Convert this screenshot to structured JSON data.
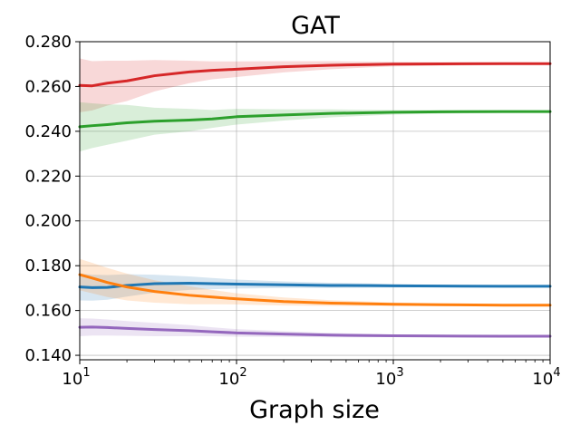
{
  "chart_data": {
    "type": "line",
    "title": "GAT",
    "xlabel": "Graph size",
    "ylabel": "",
    "xscale": "log",
    "xlim": [
      10,
      10000
    ],
    "ylim": [
      0.138,
      0.28
    ],
    "grid": true,
    "x_ticks": [
      {
        "value": 10,
        "base": "10",
        "exp": "1"
      },
      {
        "value": 100,
        "base": "10",
        "exp": "2"
      },
      {
        "value": 1000,
        "base": "10",
        "exp": "3"
      },
      {
        "value": 10000,
        "base": "10",
        "exp": "4"
      }
    ],
    "y_ticks": [
      "0.140",
      "0.160",
      "0.180",
      "0.200",
      "0.220",
      "0.240",
      "0.260",
      "0.280"
    ],
    "series": [
      {
        "color": "#d62728",
        "x": [
          10,
          12,
          15,
          20,
          30,
          50,
          70,
          100,
          200,
          400,
          700,
          1000,
          2000,
          5000,
          10000
        ],
        "y": [
          0.2605,
          0.2603,
          0.2615,
          0.2625,
          0.2648,
          0.2665,
          0.2672,
          0.2677,
          0.2688,
          0.2695,
          0.2698,
          0.27,
          0.2701,
          0.2702,
          0.2702
        ],
        "band": [
          0.012,
          0.011,
          0.01,
          0.009,
          0.007,
          0.005,
          0.004,
          0.0035,
          0.0025,
          0.0018,
          0.0013,
          0.001,
          0.0008,
          0.0006,
          0.0005
        ]
      },
      {
        "color": "#2ca02c",
        "x": [
          10,
          12,
          15,
          20,
          30,
          50,
          70,
          100,
          200,
          400,
          700,
          1000,
          2000,
          5000,
          10000
        ],
        "y": [
          0.242,
          0.2425,
          0.243,
          0.2438,
          0.2445,
          0.245,
          0.2455,
          0.2465,
          0.2473,
          0.248,
          0.2483,
          0.2485,
          0.2487,
          0.2488,
          0.2488
        ],
        "band": [
          0.011,
          0.01,
          0.009,
          0.008,
          0.006,
          0.005,
          0.004,
          0.0035,
          0.0025,
          0.0018,
          0.0013,
          0.001,
          0.0008,
          0.0006,
          0.0005
        ]
      },
      {
        "color": "#1f77b4",
        "x": [
          10,
          12,
          15,
          20,
          30,
          50,
          70,
          100,
          200,
          400,
          700,
          1000,
          2000,
          5000,
          10000
        ],
        "y": [
          0.1705,
          0.1702,
          0.1703,
          0.1712,
          0.172,
          0.1722,
          0.172,
          0.1718,
          0.1715,
          0.1712,
          0.1711,
          0.171,
          0.1709,
          0.1708,
          0.1708
        ],
        "band": [
          0.006,
          0.0058,
          0.0055,
          0.005,
          0.004,
          0.003,
          0.0025,
          0.002,
          0.0015,
          0.0012,
          0.001,
          0.0008,
          0.0006,
          0.0005,
          0.0004
        ]
      },
      {
        "color": "#ff7f0e",
        "x": [
          10,
          12,
          15,
          20,
          30,
          50,
          70,
          100,
          200,
          400,
          700,
          1000,
          2000,
          5000,
          10000
        ],
        "y": [
          0.176,
          0.1745,
          0.1725,
          0.1705,
          0.1685,
          0.1668,
          0.166,
          0.1652,
          0.164,
          0.1633,
          0.163,
          0.1628,
          0.1626,
          0.1624,
          0.1624
        ],
        "band": [
          0.007,
          0.0068,
          0.0065,
          0.006,
          0.005,
          0.004,
          0.0032,
          0.0025,
          0.0018,
          0.0013,
          0.001,
          0.0008,
          0.0006,
          0.0005,
          0.0004
        ]
      },
      {
        "color": "#9467bd",
        "x": [
          10,
          12,
          15,
          20,
          30,
          50,
          70,
          100,
          200,
          400,
          700,
          1000,
          2000,
          5000,
          10000
        ],
        "y": [
          0.1525,
          0.1526,
          0.1524,
          0.152,
          0.1515,
          0.151,
          0.1505,
          0.15,
          0.1495,
          0.149,
          0.1488,
          0.1487,
          0.1486,
          0.1485,
          0.1485
        ],
        "band": [
          0.004,
          0.0038,
          0.0036,
          0.0033,
          0.003,
          0.0025,
          0.002,
          0.0017,
          0.0013,
          0.001,
          0.0008,
          0.0006,
          0.0005,
          0.0004,
          0.0003
        ]
      }
    ]
  }
}
